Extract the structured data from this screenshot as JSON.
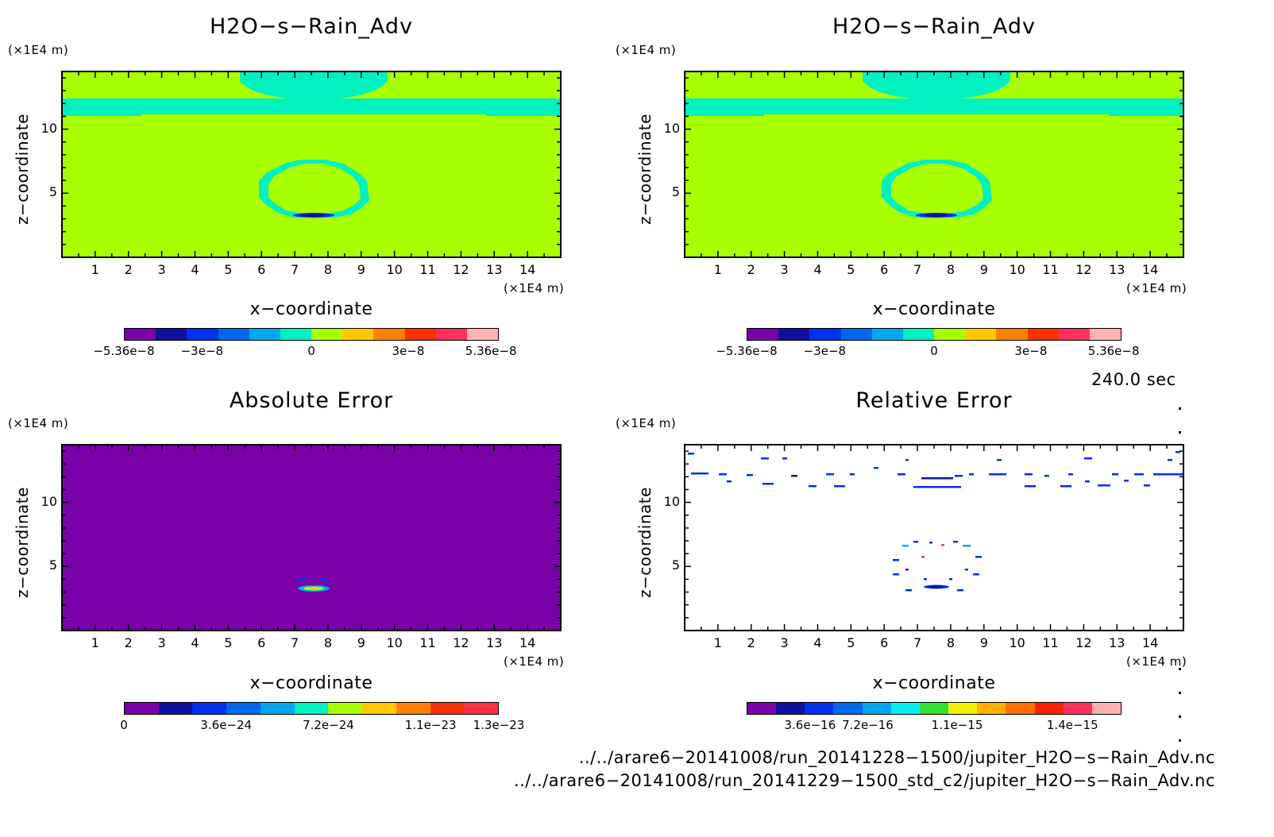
{
  "chart_data": [
    {
      "type": "heatmap",
      "title": "H2O−s−Rain_Adv",
      "xlabel": "x−coordinate",
      "ylabel": "z−coordinate",
      "x_unit": "(×1E4 m)",
      "y_unit": "(×1E4 m)",
      "x_ticks": [
        "1",
        "2",
        "3",
        "4",
        "5",
        "6",
        "7",
        "8",
        "9",
        "10",
        "11",
        "12",
        "13",
        "14"
      ],
      "y_ticks": [
        "5",
        "10"
      ],
      "xlim": [
        0,
        15
      ],
      "ylim": [
        0,
        14.5
      ],
      "colorbar_labels": [
        "−5.36e−8",
        "−3e−8",
        "0",
        "3e−8",
        "5.36e−8"
      ],
      "colorbar_colors": [
        "#7a00a8",
        "#1010a0",
        "#0030f0",
        "#0068f0",
        "#00a8f0",
        "#00f0c0",
        "#a8ff00",
        "#ffc800",
        "#ff8000",
        "#ff3000",
        "#ff3060",
        "#ffb0b0"
      ],
      "background_value": 0
    },
    {
      "type": "heatmap",
      "title": "H2O−s−Rain_Adv",
      "xlabel": "x−coordinate",
      "ylabel": "z−coordinate",
      "x_unit": "(×1E4 m)",
      "y_unit": "(×1E4 m)",
      "x_ticks": [
        "1",
        "2",
        "3",
        "4",
        "5",
        "6",
        "7",
        "8",
        "9",
        "10",
        "11",
        "12",
        "13",
        "14"
      ],
      "y_ticks": [
        "5",
        "10"
      ],
      "xlim": [
        0,
        15
      ],
      "ylim": [
        0,
        14.5
      ],
      "colorbar_labels": [
        "−5.36e−8",
        "−3e−8",
        "0",
        "3e−8",
        "5.36e−8"
      ],
      "colorbar_colors": [
        "#7a00a8",
        "#1010a0",
        "#0030f0",
        "#0068f0",
        "#00a8f0",
        "#00f0c0",
        "#a8ff00",
        "#ffc800",
        "#ff8000",
        "#ff3000",
        "#ff3060",
        "#ffb0b0"
      ],
      "background_value": 0
    },
    {
      "type": "heatmap",
      "title": "Absolute Error",
      "xlabel": "x−coordinate",
      "ylabel": "z−coordinate",
      "x_unit": "(×1E4 m)",
      "y_unit": "(×1E4 m)",
      "x_ticks": [
        "1",
        "2",
        "3",
        "4",
        "5",
        "6",
        "7",
        "8",
        "9",
        "10",
        "11",
        "12",
        "13",
        "14"
      ],
      "y_ticks": [
        "5",
        "10"
      ],
      "xlim": [
        0,
        15
      ],
      "ylim": [
        0,
        14.5
      ],
      "colorbar_labels": [
        "0",
        "3.6e−24",
        "7.2e−24",
        "1.1e−23",
        "1.3e−23"
      ],
      "colorbar_colors": [
        "#7a00a8",
        "#1010a0",
        "#0030f0",
        "#0068f0",
        "#00a8f0",
        "#00f0c0",
        "#a8ff00",
        "#ffc800",
        "#ff8000",
        "#ff3000",
        "#ff3040"
      ],
      "background_value": 0
    },
    {
      "type": "heatmap",
      "title": "Relative Error",
      "xlabel": "x−coordinate",
      "ylabel": "z−coordinate",
      "x_unit": "(×1E4 m)",
      "y_unit": "(×1E4 m)",
      "x_ticks": [
        "1",
        "2",
        "3",
        "4",
        "5",
        "6",
        "7",
        "8",
        "9",
        "10",
        "11",
        "12",
        "13",
        "14"
      ],
      "y_ticks": [
        "5",
        "10"
      ],
      "xlim": [
        0,
        15
      ],
      "ylim": [
        0,
        14.5
      ],
      "colorbar_labels": [
        "3.6e−16",
        "7.2e−16",
        "1.1e−15",
        "1.4e−15"
      ],
      "colorbar_colors": [
        "#7a00a8",
        "#1010a0",
        "#0030f0",
        "#0068f0",
        "#00a8f0",
        "#00f0f0",
        "#30e030",
        "#f0f000",
        "#ffb000",
        "#ff7000",
        "#ff2000",
        "#ff3060",
        "#ffb0b0"
      ],
      "background_value": "blank"
    }
  ],
  "time_label": "240.0 sec",
  "files": [
    "../../arare6−20141008/run_20141228−1500/jupiter_H2O−s−Rain_Adv.nc",
    "../../arare6−20141008/run_20141229−1500_std_c2/jupiter_H2O−s−Rain_Adv.nc"
  ],
  "colors": {
    "green": "#a8ff00",
    "cyan": "#00f0c0",
    "purple": "#7a00a8",
    "blue": "#0030f0"
  }
}
